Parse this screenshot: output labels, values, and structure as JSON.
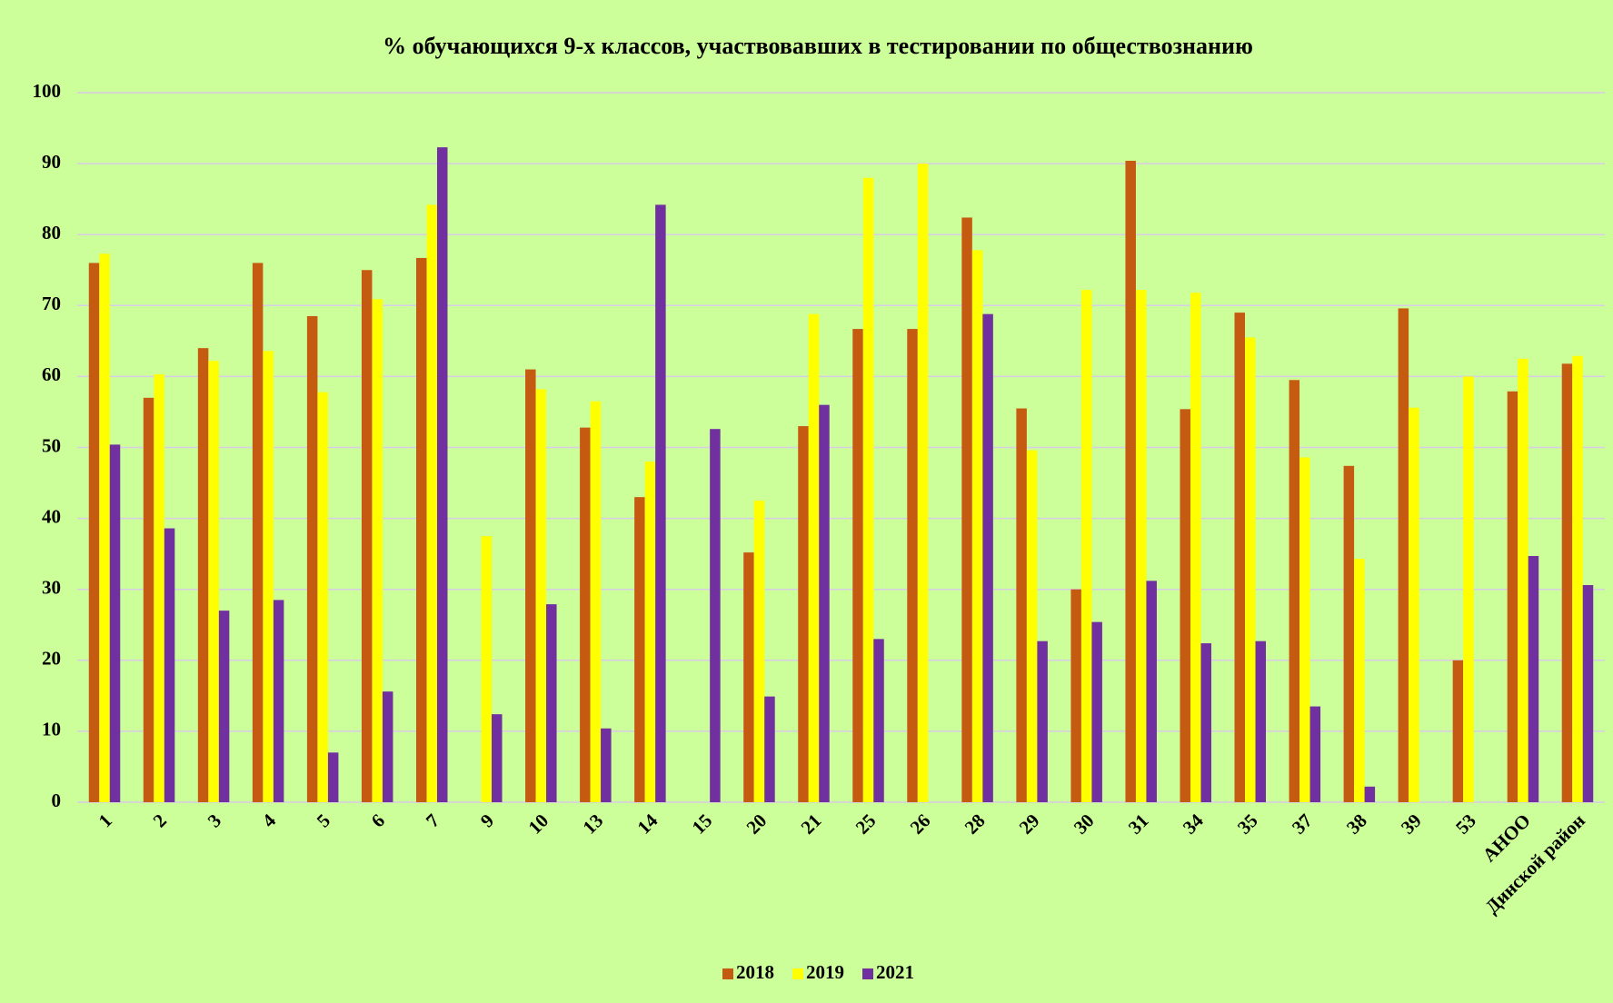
{
  "chart_data": {
    "type": "bar",
    "title": "% обучающихся 9-х классов, участвовавших в тестировании по обществознанию",
    "categories": [
      "1",
      "2",
      "3",
      "4",
      "5",
      "6",
      "7",
      "9",
      "10",
      "13",
      "14",
      "15",
      "20",
      "21",
      "25",
      "26",
      "28",
      "29",
      "30",
      "31",
      "34",
      "35",
      "37",
      "38",
      "39",
      "53",
      "АНОО",
      "Динской район"
    ],
    "series": [
      {
        "name": "2018",
        "color": "#c55a11",
        "values": [
          76,
          57,
          64,
          76,
          68.5,
          75,
          76.7,
          null,
          61,
          52.8,
          43,
          null,
          35.2,
          53,
          66.7,
          66.7,
          82.4,
          55.5,
          30,
          90.4,
          55.4,
          69,
          59.5,
          47.4,
          69.6,
          20,
          57.9,
          61.8
        ]
      },
      {
        "name": "2019",
        "color": "#ffff00",
        "values": [
          77.3,
          60.3,
          62.2,
          63.6,
          57.8,
          70.9,
          84.2,
          37.5,
          58.2,
          56.5,
          48,
          null,
          42.5,
          68.8,
          88,
          90,
          77.8,
          49.6,
          72.2,
          72.2,
          71.8,
          65.5,
          48.6,
          34.3,
          55.6,
          60,
          62.5,
          62.9
        ]
      },
      {
        "name": "2021",
        "color": "#7030a0",
        "values": [
          50.4,
          38.6,
          27,
          28.5,
          7,
          15.6,
          92.3,
          12.4,
          27.9,
          10.4,
          84.2,
          52.6,
          14.9,
          56,
          23,
          null,
          68.8,
          22.7,
          25.4,
          31.2,
          22.4,
          22.7,
          13.5,
          2.2,
          null,
          null,
          34.7,
          30.6
        ]
      }
    ],
    "ylim": [
      0,
      100
    ],
    "yticks": [
      0,
      10,
      20,
      30,
      40,
      50,
      60,
      70,
      80,
      90,
      100
    ],
    "grid": true,
    "legend": "bottom"
  }
}
